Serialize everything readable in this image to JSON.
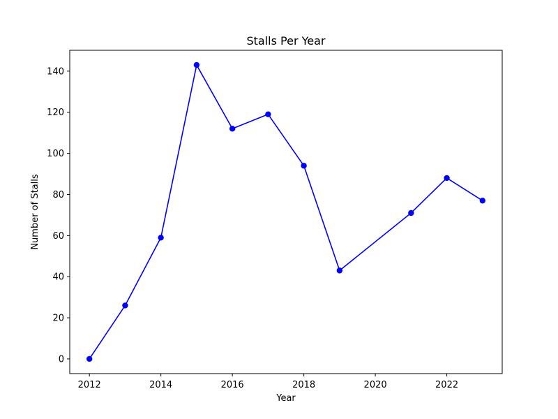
{
  "chart_data": {
    "type": "line",
    "title": "Stalls Per Year",
    "xlabel": "Year",
    "ylabel": "Number of Stalls",
    "x": [
      2012,
      2013,
      2014,
      2015,
      2016,
      2017,
      2018,
      2019,
      2021,
      2022,
      2023
    ],
    "series": [
      {
        "values": [
          0,
          26,
          59,
          143,
          112,
          119,
          94,
          43,
          71,
          88,
          77
        ],
        "color": "#0000ff",
        "marker": "circle"
      }
    ],
    "xlim": [
      2011.45,
      2023.55
    ],
    "ylim": [
      -7.15,
      150.15
    ],
    "xticks": [
      2012,
      2014,
      2016,
      2018,
      2020,
      2022
    ],
    "yticks": [
      0,
      20,
      40,
      60,
      80,
      100,
      120,
      140
    ],
    "grid": false,
    "legend": "none"
  }
}
